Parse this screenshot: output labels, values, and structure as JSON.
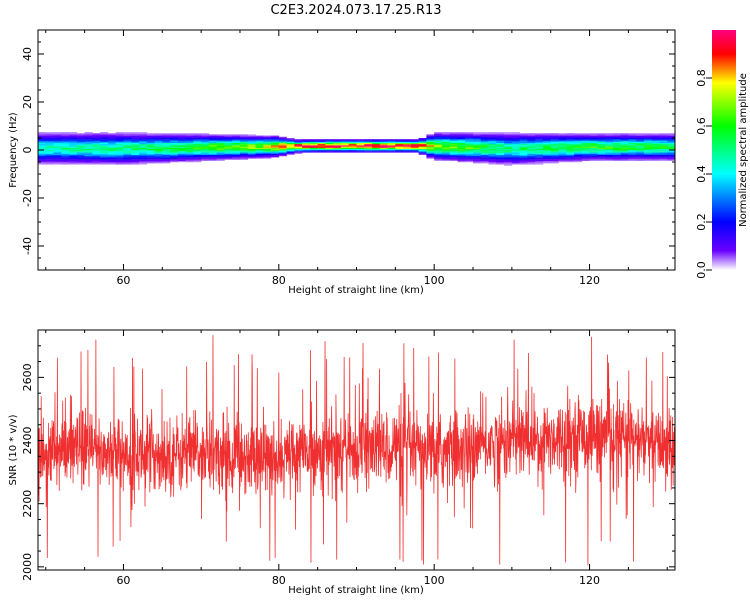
{
  "title": "C2E3.2024.073.17.25.R13",
  "chart_data": [
    {
      "type": "heatmap",
      "xlabel": "Height of straight line (km)",
      "ylabel": "Frequency (Hz)",
      "xlim": [
        49,
        131
      ],
      "ylim": [
        -50,
        50
      ],
      "xticks": [
        60,
        80,
        100,
        120
      ],
      "yticks": [
        -40,
        -20,
        0,
        20,
        40
      ],
      "colorbar": {
        "label": "Normalized spectral amplitude",
        "range": [
          0.0,
          1.0
        ],
        "ticks": [
          "0.0",
          "0.2",
          "0.4",
          "0.6",
          "0.8"
        ],
        "colors": [
          "#ffffff",
          "#6a00ff",
          "#0000ff",
          "#00ffff",
          "#00ff00",
          "#ffff00",
          "#ff0000",
          "#ff0080"
        ]
      },
      "band": {
        "center_hz": [
          [
            49,
            0.5
          ],
          [
            55,
            0.4
          ],
          [
            60,
            0.3
          ],
          [
            65,
            0.5
          ],
          [
            70,
            0.8
          ],
          [
            75,
            1.0
          ],
          [
            80,
            1.2
          ],
          [
            85,
            1.5
          ],
          [
            90,
            1.5
          ],
          [
            95,
            1.5
          ],
          [
            98,
            1.4
          ],
          [
            100,
            1.3
          ],
          [
            105,
            0.8
          ],
          [
            110,
            0.2
          ],
          [
            115,
            0.6
          ],
          [
            120,
            0.9
          ],
          [
            125,
            1.0
          ],
          [
            131,
            1.0
          ]
        ],
        "halfwidth_hz": [
          [
            49,
            6
          ],
          [
            60,
            6
          ],
          [
            70,
            5
          ],
          [
            80,
            4
          ],
          [
            82,
            2.5
          ],
          [
            98,
            2.5
          ],
          [
            100,
            5
          ],
          [
            110,
            6
          ],
          [
            120,
            5
          ],
          [
            131,
            5
          ]
        ],
        "peak_amplitude": [
          [
            49,
            0.45
          ],
          [
            60,
            0.5
          ],
          [
            70,
            0.6
          ],
          [
            78,
            0.7
          ],
          [
            82,
            0.92
          ],
          [
            90,
            0.97
          ],
          [
            98,
            0.95
          ],
          [
            100,
            0.7
          ],
          [
            110,
            0.5
          ],
          [
            120,
            0.6
          ],
          [
            131,
            0.55
          ]
        ]
      }
    },
    {
      "type": "line",
      "xlabel": "Height of straight line (km)",
      "ylabel": "SNR (10 * v/v)",
      "xlim": [
        49,
        131
      ],
      "ylim": [
        1990,
        2750
      ],
      "xticks": [
        60,
        80,
        100,
        120
      ],
      "yticks": [
        2000,
        2200,
        2400,
        2600
      ],
      "color": "#f03030",
      "series": [
        {
          "x_range": [
            49,
            131
          ],
          "points": 2400,
          "mean_profile": [
            [
              49,
              2360
            ],
            [
              55,
              2370
            ],
            [
              60,
              2360
            ],
            [
              65,
              2355
            ],
            [
              70,
              2360
            ],
            [
              75,
              2355
            ],
            [
              80,
              2345
            ],
            [
              85,
              2370
            ],
            [
              90,
              2370
            ],
            [
              95,
              2380
            ],
            [
              100,
              2360
            ],
            [
              105,
              2380
            ],
            [
              110,
              2400
            ],
            [
              115,
              2410
            ],
            [
              120,
              2420
            ],
            [
              125,
              2410
            ],
            [
              131,
              2370
            ]
          ],
          "spread": 110,
          "spike_max": 2745,
          "spike_min": 2000
        }
      ]
    }
  ]
}
